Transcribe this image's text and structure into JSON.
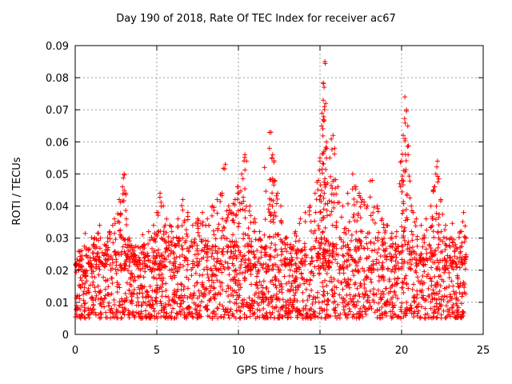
{
  "chart_data": {
    "type": "scatter",
    "title": "Day 190 of 2018, Rate Of TEC Index for receiver ac67",
    "xlabel": "GPS time / hours",
    "ylabel": "ROTI / TECUs",
    "xlim": [
      0,
      25
    ],
    "ylim": [
      0,
      0.09
    ],
    "xticks": [
      "0",
      "5",
      "10",
      "15",
      "20",
      "25"
    ],
    "yticks": [
      "0",
      "0.01",
      "0.02",
      "0.03",
      "0.04",
      "0.05",
      "0.06",
      "0.07",
      "0.08",
      "0.09"
    ],
    "grid": true,
    "marker": "+",
    "color": "#ff0000",
    "series": [
      {
        "x": [
          0.1,
          0.3,
          0.6,
          0.9,
          1.2,
          1.5,
          1.8,
          2.1,
          2.4,
          2.7,
          2.9,
          3.0,
          3.1,
          3.3,
          3.6,
          3.9,
          4.2,
          4.5,
          4.8,
          5.0,
          5.2,
          5.4,
          5.6,
          5.8,
          6.0,
          6.3,
          6.6,
          6.9,
          7.2,
          7.5,
          7.8,
          8.1,
          8.4,
          8.7,
          9.0,
          9.2,
          9.4,
          9.6,
          9.8,
          10.0,
          10.2,
          10.4,
          10.5,
          10.7,
          11.0,
          11.3,
          11.6,
          11.9,
          12.0,
          12.1,
          12.2,
          12.4,
          12.6,
          12.9,
          13.2,
          13.5,
          13.8,
          14.1,
          14.4,
          14.7,
          14.9,
          15.0,
          15.1,
          15.2,
          15.25,
          15.3,
          15.35,
          15.4,
          15.6,
          15.8,
          15.9,
          16.1,
          16.4,
          16.7,
          17.0,
          17.2,
          17.4,
          17.6,
          17.9,
          18.2,
          18.5,
          18.8,
          19.1,
          19.4,
          19.7,
          20.0,
          20.1,
          20.2,
          20.3,
          20.4,
          20.6,
          20.9,
          21.2,
          21.5,
          21.8,
          22.0,
          22.1,
          22.2,
          22.4,
          22.7,
          23.0,
          23.3,
          23.6,
          23.8,
          23.95
        ],
        "y": [
          0.022,
          0.026,
          0.018,
          0.024,
          0.03,
          0.034,
          0.028,
          0.032,
          0.036,
          0.042,
          0.046,
          0.05,
          0.044,
          0.03,
          0.026,
          0.024,
          0.028,
          0.032,
          0.034,
          0.038,
          0.044,
          0.04,
          0.036,
          0.034,
          0.03,
          0.036,
          0.042,
          0.038,
          0.034,
          0.036,
          0.038,
          0.036,
          0.04,
          0.042,
          0.044,
          0.053,
          0.04,
          0.038,
          0.042,
          0.046,
          0.05,
          0.056,
          0.054,
          0.04,
          0.036,
          0.032,
          0.052,
          0.058,
          0.063,
          0.056,
          0.048,
          0.044,
          0.04,
          0.03,
          0.028,
          0.032,
          0.036,
          0.038,
          0.04,
          0.044,
          0.048,
          0.055,
          0.065,
          0.073,
          0.077,
          0.085,
          0.072,
          0.06,
          0.055,
          0.062,
          0.058,
          0.046,
          0.04,
          0.044,
          0.05,
          0.046,
          0.044,
          0.042,
          0.04,
          0.048,
          0.04,
          0.036,
          0.034,
          0.03,
          0.032,
          0.054,
          0.062,
          0.074,
          0.07,
          0.056,
          0.04,
          0.036,
          0.034,
          0.036,
          0.04,
          0.046,
          0.05,
          0.054,
          0.042,
          0.034,
          0.03,
          0.028,
          0.032,
          0.038,
          0.03
        ],
        "baseline_low": 0.005,
        "baseline_high": 0.028
      }
    ]
  }
}
